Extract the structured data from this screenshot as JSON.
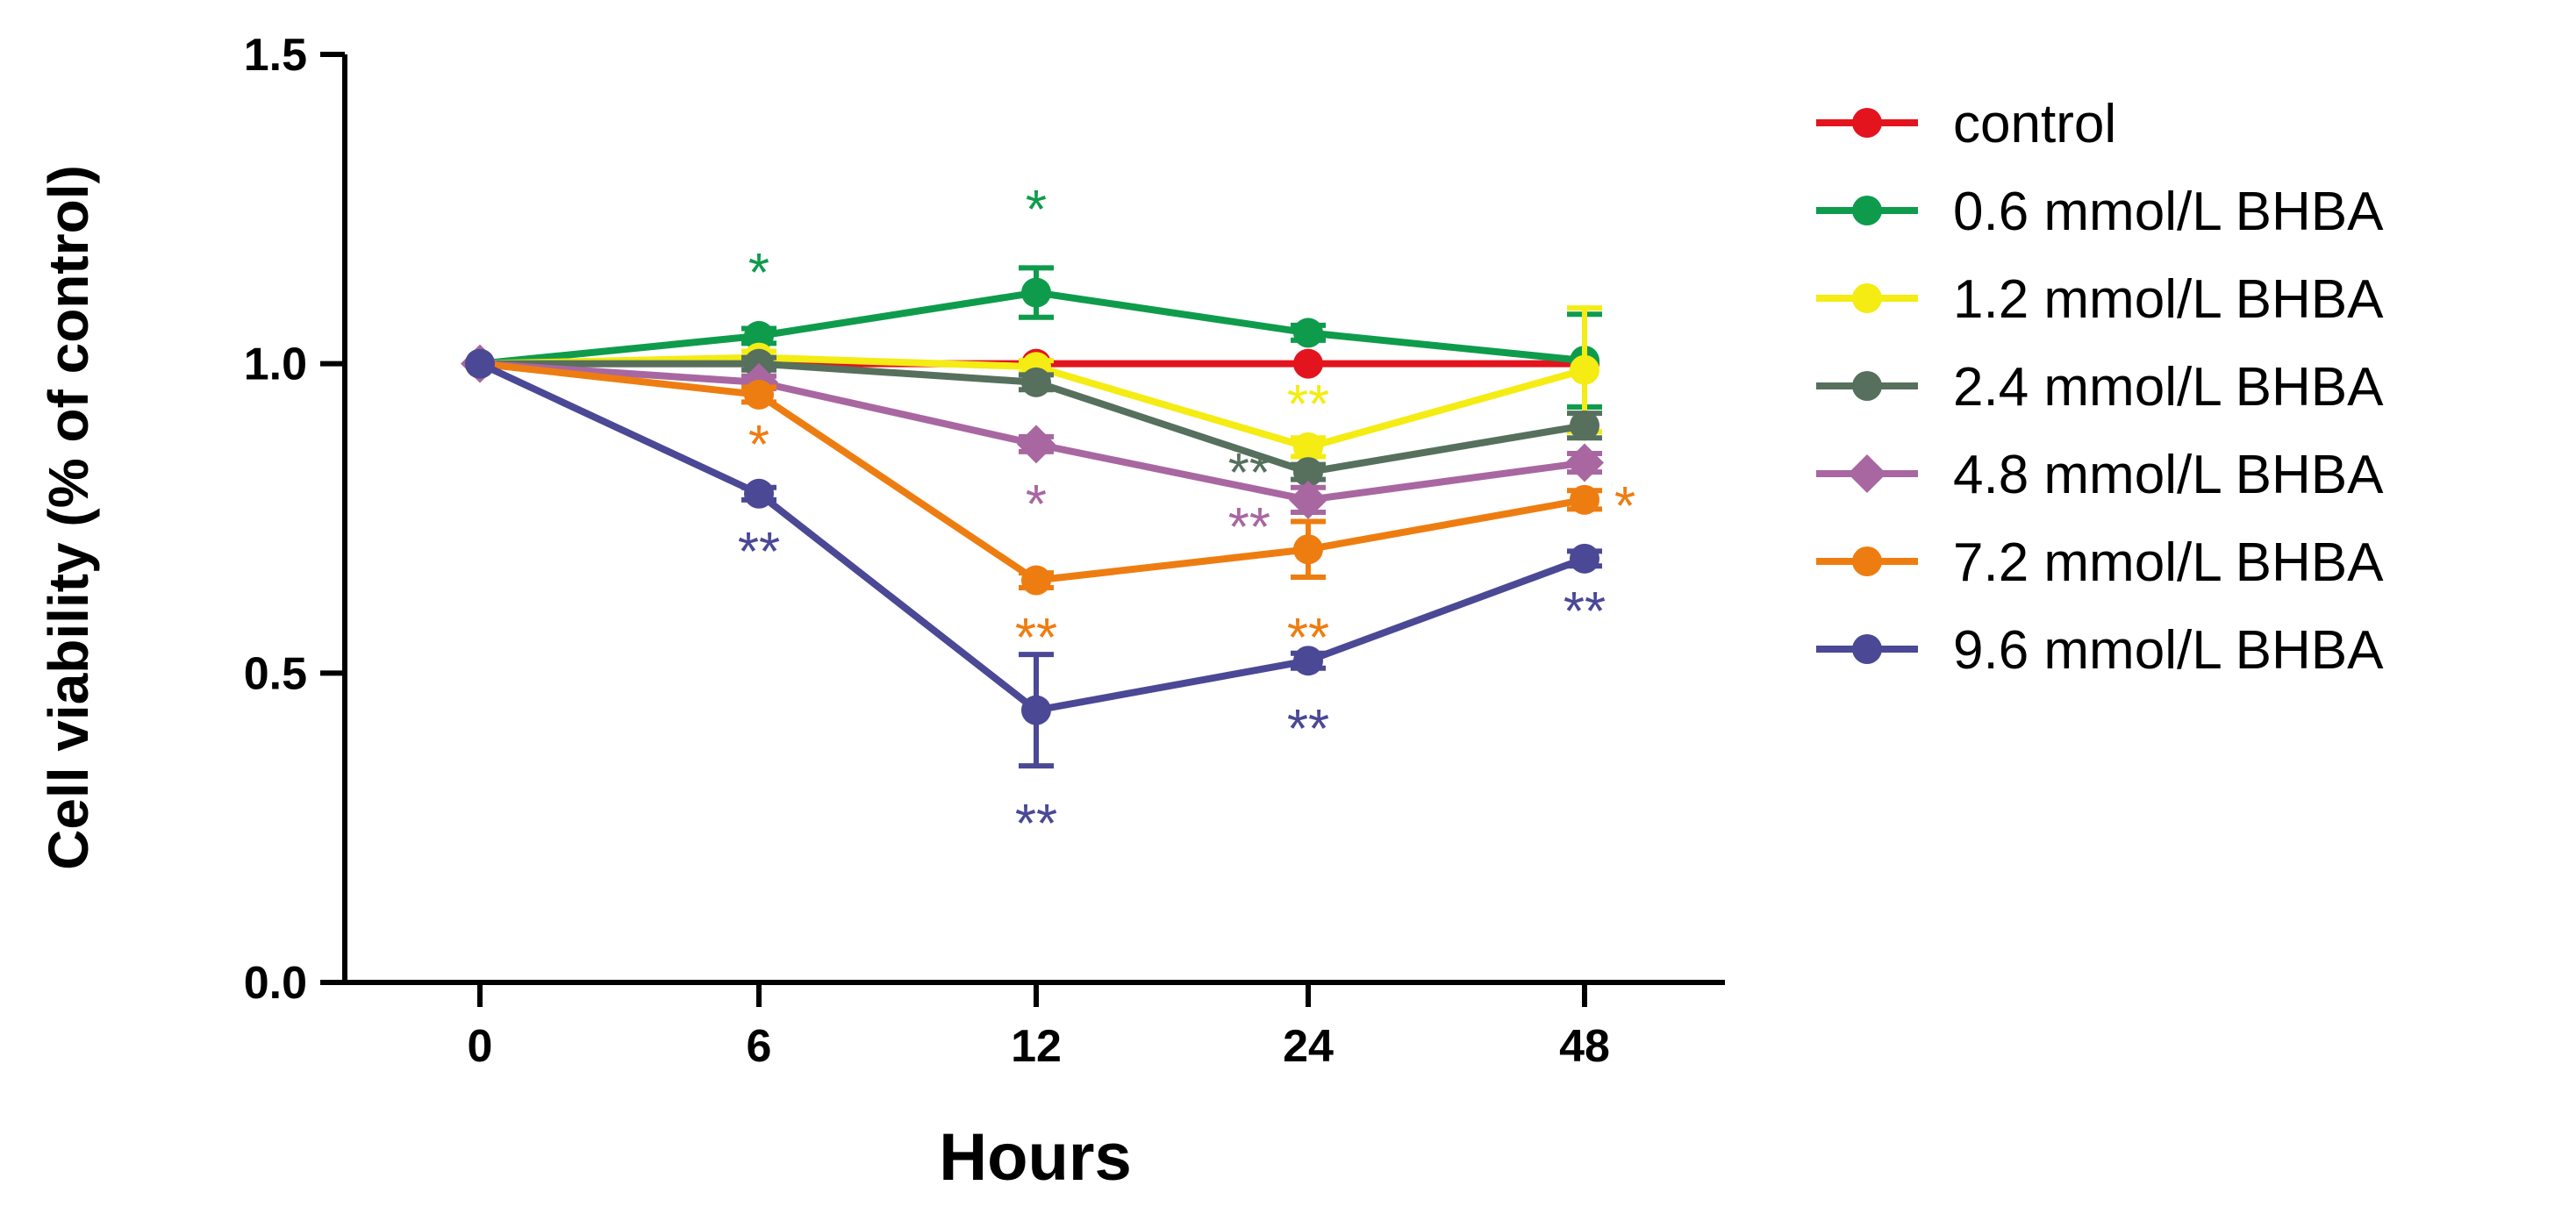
{
  "chart_data": {
    "type": "line",
    "title": "",
    "xlabel": "Hours",
    "ylabel": "Cell viability (% of control)",
    "categories": [
      "0",
      "6",
      "12",
      "24",
      "48"
    ],
    "ylim": [
      0,
      1.5
    ],
    "yticks": [
      "0.0",
      "0.5",
      "1.0",
      "1.5"
    ],
    "legend_position": "right",
    "series": [
      {
        "name": "control",
        "color": "#e3141e",
        "marker": "circle",
        "values": [
          1.0,
          1.0,
          1.0,
          1.0,
          1.0
        ],
        "errors": [
          0,
          0,
          0,
          0,
          0
        ],
        "sig": [
          "",
          "",
          "",
          "",
          ""
        ]
      },
      {
        "name": "0.6 mmol/L BHBA",
        "color": "#0e9c4c",
        "marker": "circle",
        "values": [
          1.0,
          1.045,
          1.115,
          1.05,
          1.005
        ],
        "errors": [
          0,
          0.012,
          0.04,
          0.012,
          0.075
        ],
        "sig": [
          "",
          "*",
          "*",
          "",
          ""
        ]
      },
      {
        "name": "1.2 mmol/L BHBA",
        "color": "#f4ec13",
        "marker": "circle",
        "values": [
          1.0,
          1.01,
          0.995,
          0.865,
          0.99
        ],
        "errors": [
          0,
          0.01,
          0.01,
          0.015,
          0.1
        ],
        "sig": [
          "",
          "",
          "",
          "**",
          ""
        ]
      },
      {
        "name": "2.4 mmol/L BHBA",
        "color": "#56705d",
        "marker": "circle",
        "values": [
          1.0,
          1.0,
          0.97,
          0.825,
          0.9
        ],
        "errors": [
          0,
          0.01,
          0.012,
          0.012,
          0.02
        ],
        "sig": [
          "",
          "",
          "",
          "**",
          ""
        ]
      },
      {
        "name": "4.8 mmol/L BHBA",
        "color": "#a867a1",
        "marker": "diamond",
        "values": [
          1.0,
          0.97,
          0.87,
          0.78,
          0.84
        ],
        "errors": [
          0,
          0.01,
          0.012,
          0.02,
          0.015
        ],
        "sig": [
          "",
          "",
          "*",
          "**",
          ""
        ]
      },
      {
        "name": "7.2 mmol/L BHBA",
        "color": "#ee7d11",
        "marker": "circle",
        "values": [
          1.0,
          0.95,
          0.65,
          0.7,
          0.78
        ],
        "errors": [
          0,
          0.012,
          0.012,
          0.045,
          0.015
        ],
        "sig": [
          "",
          "*",
          "**",
          "**",
          "*"
        ]
      },
      {
        "name": "9.6 mmol/L BHBA",
        "color": "#4b4896",
        "marker": "circle",
        "values": [
          1.0,
          0.79,
          0.44,
          0.52,
          0.685
        ],
        "errors": [
          0,
          0.01,
          0.09,
          0.012,
          0.012
        ],
        "sig": [
          "",
          "**",
          "**",
          "**",
          "**"
        ]
      }
    ]
  }
}
